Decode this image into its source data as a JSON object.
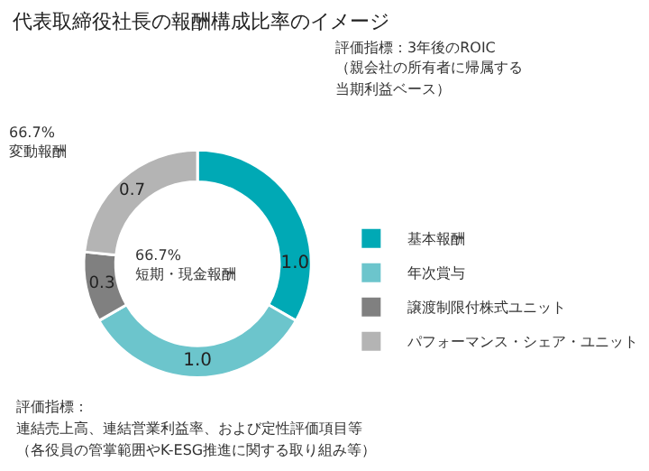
{
  "chart_data": {
    "type": "donut",
    "title": "代表取締役社長の報酬構成比率のイメージ",
    "categories": [
      "基本報酬",
      "年次賞与",
      "譲渡制限付株式ユニット",
      "パフォーマンス・シェア・ユニット"
    ],
    "values": [
      1.0,
      1.0,
      0.3,
      0.7
    ],
    "colors": [
      "#00a9b5",
      "#6cc5cc",
      "#808080",
      "#b4b4b4"
    ],
    "value_labels": [
      "1.0",
      "1.0",
      "0.3",
      "0.7"
    ],
    "legend": "bottom right",
    "annotations": [
      "評価指標：3年後のROIC",
      "（親会社の所有者に帰属する",
      "当期利益ベース）",
      "66.7%\n変動報酬",
      "66.7%\n短期・現金報酬",
      "評価指標：",
      "連結売上高、連結営業利益率、および定性評価項目等",
      "（各役員の管掌範囲やK-ESG推進に関する取り組み等）"
    ]
  }
}
